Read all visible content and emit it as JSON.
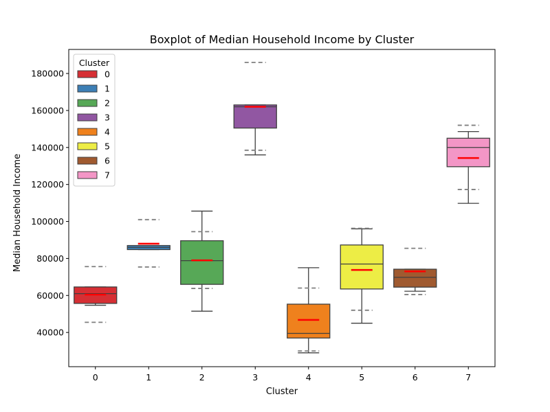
{
  "chart_data": {
    "type": "box",
    "title": "Boxplot of Median Household Income by Cluster",
    "xlabel": "Cluster",
    "ylabel": "Median Household Income",
    "categories": [
      "0",
      "1",
      "2",
      "3",
      "4",
      "5",
      "6",
      "7"
    ],
    "ylim": [
      21500,
      193000
    ],
    "yticks": [
      40000,
      60000,
      80000,
      100000,
      120000,
      140000,
      160000,
      180000
    ],
    "legend": {
      "title": "Cluster",
      "placement": "top-left"
    },
    "colors": [
      "#d62f34",
      "#3d7fb5",
      "#57a857",
      "#9157a2",
      "#ef811d",
      "#eded45",
      "#a05a30",
      "#f396c6"
    ],
    "box_edge_color": "#3f3f3f",
    "mean_color": "#ff0000",
    "std_band_color": "#7f7f7f",
    "boxes": [
      {
        "cluster": "0",
        "whislo": 54700,
        "q1": 55700,
        "med": 61000,
        "q3": 64600,
        "whishi": 64600,
        "mean": 60500,
        "std_low": 45500,
        "std_high": 75600
      },
      {
        "cluster": "1",
        "whislo": 84800,
        "q1": 84800,
        "med": 86000,
        "q3": 87000,
        "whishi": 87000,
        "mean": 88000,
        "std_low": 75400,
        "std_high": 101000
      },
      {
        "cluster": "2",
        "whislo": 51500,
        "q1": 66000,
        "med": 78800,
        "q3": 89600,
        "whishi": 105600,
        "mean": 79000,
        "std_low": 63800,
        "std_high": 94500
      },
      {
        "cluster": "3",
        "whislo": 136000,
        "q1": 150500,
        "med": 162000,
        "q3": 163000,
        "whishi": 163000,
        "mean": 162000,
        "std_low": 138500,
        "std_high": 186000
      },
      {
        "cluster": "4",
        "whislo": 29000,
        "q1": 37000,
        "med": 39500,
        "q3": 55300,
        "whishi": 75000,
        "mean": 46800,
        "std_low": 30000,
        "std_high": 64000
      },
      {
        "cluster": "5",
        "whislo": 45000,
        "q1": 63500,
        "med": 77000,
        "q3": 87300,
        "whishi": 96000,
        "mean": 73800,
        "std_low": 52000,
        "std_high": 96300
      },
      {
        "cluster": "6",
        "whislo": 62300,
        "q1": 64500,
        "med": 69800,
        "q3": 74200,
        "whishi": 74200,
        "mean": 73000,
        "std_low": 60500,
        "std_high": 85500
      },
      {
        "cluster": "7",
        "whislo": 109800,
        "q1": 129600,
        "med": 140000,
        "q3": 145000,
        "whishi": 148600,
        "mean": 134300,
        "std_low": 117300,
        "std_high": 152000
      }
    ]
  }
}
